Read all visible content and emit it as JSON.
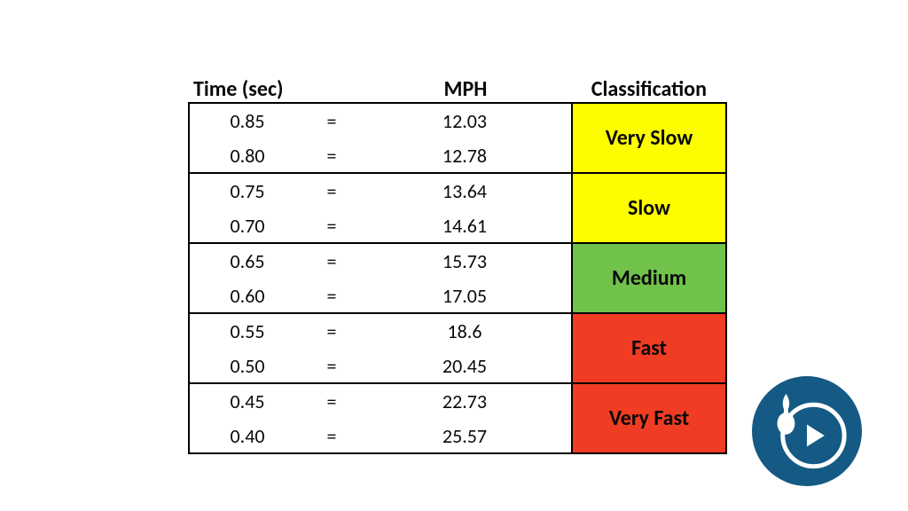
{
  "table": {
    "headers": {
      "time": "Time (sec)",
      "mph": "MPH",
      "classification": "Classification"
    },
    "eq": "=",
    "colors": {
      "very_slow": "#fdfd00",
      "slow": "#fdfd00",
      "medium": "#70c24a",
      "fast": "#f03c22",
      "very_fast": "#f03c22",
      "border": "#000000",
      "text": "#0a0a0a"
    },
    "groups": [
      {
        "label": "Very Slow",
        "color_key": "very_slow",
        "rows": [
          {
            "time": "0.85",
            "mph": "12.03"
          },
          {
            "time": "0.80",
            "mph": "12.78"
          }
        ]
      },
      {
        "label": "Slow",
        "color_key": "slow",
        "rows": [
          {
            "time": "0.75",
            "mph": "13.64"
          },
          {
            "time": "0.70",
            "mph": "14.61"
          }
        ]
      },
      {
        "label": "Medium",
        "color_key": "medium",
        "rows": [
          {
            "time": "0.65",
            "mph": "15.73"
          },
          {
            "time": "0.60",
            "mph": "17.05"
          }
        ]
      },
      {
        "label": "Fast",
        "color_key": "fast",
        "rows": [
          {
            "time": "0.55",
            "mph": "18.6"
          },
          {
            "time": "0.50",
            "mph": "20.45"
          }
        ]
      },
      {
        "label": "Very Fast",
        "color_key": "very_fast",
        "rows": [
          {
            "time": "0.45",
            "mph": "22.73"
          },
          {
            "time": "0.40",
            "mph": "25.57"
          }
        ]
      }
    ]
  },
  "badge": {
    "bg": "#145a84",
    "fg": "#ffffff"
  }
}
